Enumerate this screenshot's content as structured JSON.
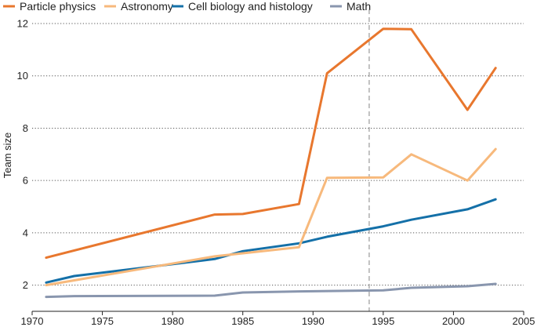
{
  "chart_data": {
    "type": "line",
    "ylabel": "Team size",
    "xlabel": "",
    "xlim": [
      1970,
      2005
    ],
    "ylim": [
      1,
      12
    ],
    "x_ticks": [
      1970,
      1975,
      1980,
      1985,
      1990,
      1995,
      2000,
      2005
    ],
    "y_ticks": [
      2,
      4,
      6,
      8,
      10,
      12
    ],
    "grid": "horizontal dotted",
    "legend_position": "top",
    "reference_line_x": 1994,
    "series": [
      {
        "name": "Particle physics",
        "color": "#e8772e",
        "x": [
          1971,
          1983,
          1985,
          1989,
          1991,
          1995,
          1997,
          2001,
          2003
        ],
        "y": [
          3.05,
          4.7,
          4.72,
          5.1,
          10.1,
          11.8,
          11.78,
          8.7,
          10.3
        ]
      },
      {
        "name": "Astronomy",
        "color": "#f7b97c",
        "x": [
          1971,
          1983,
          1989,
          1991,
          1995,
          1997,
          2001,
          2003
        ],
        "y": [
          2.0,
          3.1,
          3.45,
          6.1,
          6.12,
          7.0,
          6.0,
          7.2
        ]
      },
      {
        "name": "Cell biology and histology",
        "color": "#1470a8",
        "x": [
          1971,
          1973,
          1983,
          1985,
          1989,
          1991,
          1995,
          1997,
          2001,
          2003
        ],
        "y": [
          2.1,
          2.35,
          3.0,
          3.3,
          3.6,
          3.85,
          4.25,
          4.5,
          4.9,
          5.28
        ]
      },
      {
        "name": "Math",
        "color": "#8996ae",
        "x": [
          1971,
          1973,
          1983,
          1985,
          1989,
          1995,
          1997,
          2001,
          2003
        ],
        "y": [
          1.55,
          1.58,
          1.6,
          1.72,
          1.76,
          1.8,
          1.9,
          1.96,
          2.05
        ]
      }
    ]
  }
}
